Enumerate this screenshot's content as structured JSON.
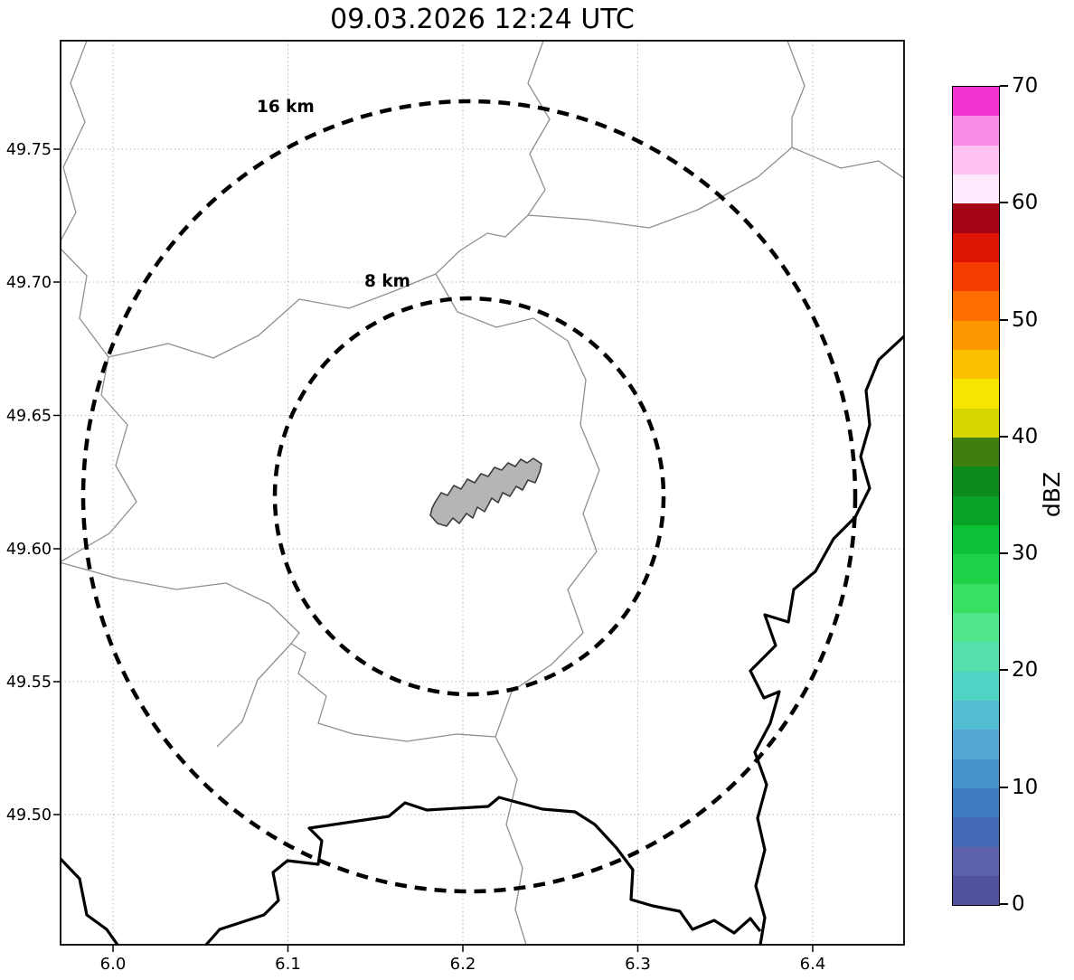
{
  "title": "09.03.2026 12:24 UTC",
  "axes": {
    "x_ticks": [
      "6.0",
      "6.1",
      "6.2",
      "6.3",
      "6.4"
    ],
    "y_ticks": [
      "49.75",
      "49.70",
      "49.65",
      "49.60",
      "49.55",
      "49.50"
    ]
  },
  "rings": {
    "outer_label": "16 km",
    "inner_label": "8 km"
  },
  "colorbar": {
    "label": "dBZ",
    "ticks": [
      "0",
      "10",
      "20",
      "30",
      "40",
      "50",
      "60",
      "70"
    ],
    "min": 0,
    "max": 70,
    "band_step_dbz": 2.5,
    "band_colors": [
      "#51519d",
      "#5d61ac",
      "#4569b5",
      "#3f7cc1",
      "#4692cb",
      "#53a7d2",
      "#53bed3",
      "#4fd3c5",
      "#54dfac",
      "#4fe789",
      "#37e063",
      "#1fd147",
      "#0ec036",
      "#07a226",
      "#0d8a1c",
      "#3f7f0e",
      "#d8d600",
      "#f7e400",
      "#fdc000",
      "#fd9700",
      "#fd6e00",
      "#f43b00",
      "#dd1505",
      "#a30313",
      "#feeafc",
      "#fdc2f1",
      "#fa8be6",
      "#f233d3"
    ]
  },
  "chart_data": {
    "type": "map",
    "title": "09.03.2026 12:24 UTC",
    "xlabel": "",
    "ylabel": "",
    "xlim": [
      5.97,
      6.452
    ],
    "ylim": [
      49.451,
      49.791
    ],
    "x_ticks": [
      6.0,
      6.1,
      6.2,
      6.3,
      6.4
    ],
    "y_ticks": [
      49.75,
      49.7,
      49.65,
      49.6,
      49.55,
      49.5
    ],
    "grid": true,
    "range_rings": {
      "center": {
        "lon": 6.2,
        "lat": 49.62
      },
      "radii_km": [
        8,
        16
      ],
      "labels": [
        "8 km",
        "16 km"
      ]
    },
    "colorbar": {
      "label": "dBZ",
      "range": [
        0,
        70
      ],
      "tick_step": 10
    },
    "features": [
      "thin gray administrative/river boundary lines",
      "thick black national border lines (south and east)",
      "gray filled city boundary polygon at ring center"
    ]
  }
}
